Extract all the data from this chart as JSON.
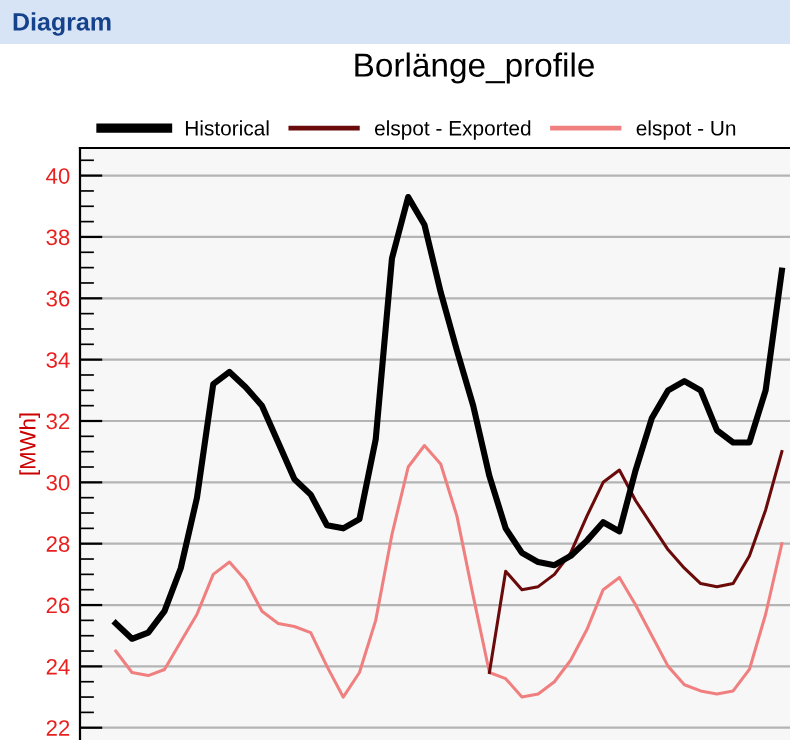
{
  "chart_data": {
    "type": "line",
    "title": "Borlänge_profile",
    "ylabel": "[MWh]",
    "annotations": [
      "Diagram"
    ],
    "categories": [
      null,
      null,
      null,
      null,
      null,
      null,
      null,
      null,
      null,
      null,
      null,
      null,
      null,
      null,
      null,
      null,
      null,
      null,
      null,
      null,
      null,
      null,
      null,
      null,
      null,
      null,
      null,
      null,
      null,
      null,
      null,
      null,
      null,
      null,
      null,
      null,
      null,
      null,
      null,
      null,
      null,
      null
    ],
    "series": [
      {
        "name": "Historical",
        "color": "#000000",
        "values": [
          25.4,
          24.9,
          25.1,
          25.8,
          27.2,
          29.5,
          33.2,
          33.6,
          33.1,
          32.5,
          31.3,
          30.1,
          29.6,
          28.6,
          28.5,
          28.8,
          31.4,
          37.3,
          39.3,
          38.4,
          36.2,
          34.3,
          32.5,
          30.2,
          28.5,
          27.7,
          27.4,
          27.3,
          27.6,
          28.1,
          28.7,
          28.4,
          30.4,
          32.1,
          33.0,
          33.3,
          33.0,
          31.7,
          31.3,
          31.3,
          33.0,
          36.9
        ]
      },
      {
        "name": "elspot - Exported",
        "color": "#6b0a0a",
        "values": [
          null,
          null,
          null,
          null,
          null,
          null,
          null,
          null,
          null,
          null,
          null,
          null,
          null,
          null,
          null,
          null,
          null,
          null,
          null,
          null,
          null,
          null,
          null,
          23.8,
          27.1,
          26.5,
          26.6,
          27.0,
          27.7,
          28.9,
          30.0,
          30.4,
          29.4,
          28.6,
          27.8,
          27.2,
          26.7,
          26.6,
          26.7,
          27.6,
          29.1,
          31.0
        ]
      },
      {
        "name": "elspot - Un",
        "color": "#f08080",
        "values": [
          24.5,
          23.8,
          23.7,
          23.9,
          24.8,
          25.7,
          27.0,
          27.4,
          26.8,
          25.8,
          25.4,
          25.3,
          25.1,
          24.0,
          23.0,
          23.8,
          25.5,
          28.3,
          30.5,
          31.2,
          30.6,
          28.9,
          26.3,
          23.8,
          23.6,
          23.0,
          23.1,
          23.5,
          24.2,
          25.2,
          26.5,
          26.9,
          26.0,
          25.0,
          24.0,
          23.4,
          23.2,
          23.1,
          23.2,
          23.9,
          25.7,
          28.0
        ]
      }
    ],
    "ylim": [
      21.6,
      40.9
    ],
    "yticks": [
      22,
      24,
      26,
      28,
      30,
      32,
      34,
      36,
      38,
      40
    ],
    "tick_labels": "y",
    "grid": "y",
    "legend": "top",
    "line_style": "solid",
    "marker": "none"
  }
}
